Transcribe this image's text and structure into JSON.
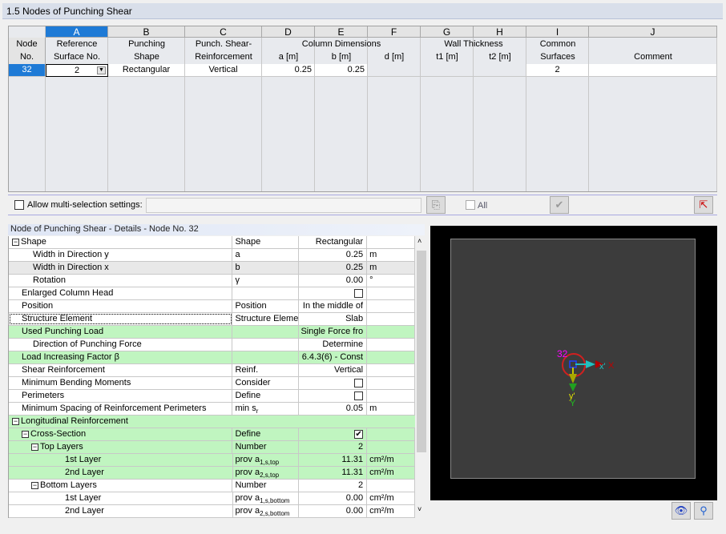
{
  "window": {
    "title": "1.5 Nodes of Punching Shear"
  },
  "table": {
    "letters": [
      "A",
      "B",
      "C",
      "D",
      "E",
      "F",
      "G",
      "H",
      "I",
      "J"
    ],
    "node_header": [
      "Node",
      "No."
    ],
    "headers": {
      "A": [
        "Reference",
        "Surface No."
      ],
      "B": [
        "Punching",
        "Shape"
      ],
      "C": [
        "Punch. Shear-",
        "Reinforcement"
      ],
      "DEF_group": "Column Dimensions",
      "D": "a [m]",
      "E": "b [m]",
      "F": "d [m]",
      "GH_group": "Wall Thickness",
      "G": "t1 [m]",
      "H": "t2 [m]",
      "I": [
        "Common",
        "Surfaces"
      ],
      "J": "Comment"
    },
    "rows": [
      {
        "node": "32",
        "ref_surface": "2",
        "shape": "Rectangular",
        "reinforcement": "Vertical",
        "a": "0.25",
        "b": "0.25",
        "d": "",
        "t1": "",
        "t2": "",
        "common": "2",
        "comment": ""
      }
    ]
  },
  "toolbar": {
    "multi_selection_label": "Allow multi-selection settings:",
    "all_label": "All"
  },
  "details": {
    "title": "Node of Punching Shear - Details - Node No.  32",
    "rows": [
      {
        "label": "Shape",
        "sym": "Shape",
        "value": "Rectangular",
        "unit": "",
        "level": 0,
        "toggle": "-",
        "style": ""
      },
      {
        "label": "Width in Direction y",
        "sym": "a",
        "value": "0.25",
        "unit": "m",
        "level": 1,
        "style": ""
      },
      {
        "label": "Width in Direction x",
        "sym": "b",
        "value": "0.25",
        "unit": "m",
        "level": 1,
        "style": "h"
      },
      {
        "label": "Rotation",
        "sym": "γ",
        "value": "0.00",
        "unit": "°",
        "level": 1,
        "style": ""
      },
      {
        "label": "Enlarged Column Head",
        "sym": "",
        "value": "",
        "check": false,
        "unit": "",
        "level": 0,
        "style": ""
      },
      {
        "label": "Position",
        "sym": "Position",
        "value": "In the middle of",
        "unit": "",
        "level": 0,
        "style": ""
      },
      {
        "label": "Structure Element",
        "sym": "Structure Eleme",
        "value": "Slab",
        "unit": "",
        "level": 0,
        "style": "",
        "focus": true
      },
      {
        "label": "Used Punching Load",
        "sym": "",
        "value": "Single Force fro",
        "unit": "",
        "level": 0,
        "style": "g"
      },
      {
        "label": "Direction of Punching Force",
        "sym": "",
        "value": "Determine",
        "unit": "",
        "level": 1,
        "style": ""
      },
      {
        "label": "Load Increasing Factor β",
        "sym": "",
        "value": "6.4.3(6) - Const",
        "unit": "",
        "level": 0,
        "style": "g"
      },
      {
        "label": "Shear Reinforcement",
        "sym": "Reinf.",
        "value": "Vertical",
        "unit": "",
        "level": 0,
        "style": ""
      },
      {
        "label": "Minimum Bending Moments",
        "sym": "Consider",
        "value": "",
        "check": false,
        "unit": "",
        "level": 0,
        "style": ""
      },
      {
        "label": "Perimeters",
        "sym": "Define",
        "value": "",
        "check": false,
        "unit": "",
        "level": 0,
        "style": ""
      },
      {
        "label": "Minimum Spacing of Reinforcement Perimeters",
        "sym": "min s",
        "sub": "r",
        "value": "0.05",
        "unit": "m",
        "level": 0,
        "style": ""
      },
      {
        "label": "Longitudinal Reinforcement",
        "sym": "",
        "value": "",
        "unit": "",
        "level": 0,
        "toggle": "-",
        "style": "g",
        "span": true
      },
      {
        "label": "Cross-Section",
        "sym": "Define",
        "value": "",
        "check": true,
        "unit": "",
        "level": 1,
        "toggle": "-",
        "style": "g"
      },
      {
        "label": "Top Layers",
        "sym": "Number",
        "value": "2",
        "unit": "",
        "level": 2,
        "toggle": "-",
        "style": "g"
      },
      {
        "label": "1st Layer",
        "sym": "prov a",
        "sub": "1,s,top",
        "value": "11.31",
        "unit": "cm²/m",
        "level": 3,
        "style": "g"
      },
      {
        "label": "2nd Layer",
        "sym": "prov a",
        "sub": "2,s,top",
        "value": "11.31",
        "unit": "cm²/m",
        "level": 3,
        "style": "g"
      },
      {
        "label": "Bottom Layers",
        "sym": "Number",
        "value": "2",
        "unit": "",
        "level": 2,
        "toggle": "-",
        "style": ""
      },
      {
        "label": "1st Layer",
        "sym": "prov a",
        "sub": "1,s,bottom",
        "value": "0.00",
        "unit": "cm²/m",
        "level": 3,
        "style": ""
      },
      {
        "label": "2nd Layer",
        "sym": "prov a",
        "sub": "2,s,bottom",
        "value": "0.00",
        "unit": "cm²/m",
        "level": 3,
        "style": ""
      }
    ]
  },
  "graphic": {
    "node_label": "32",
    "axes": {
      "x_local": "x'",
      "x": "X",
      "y_local": "y'",
      "y": "Y"
    },
    "colors": {
      "node_label": "#ff00ff",
      "support": "#d02020",
      "x_local": "#20c0c0",
      "x": "#c00000",
      "y_local": "#c8c800",
      "y": "#20c020"
    }
  }
}
